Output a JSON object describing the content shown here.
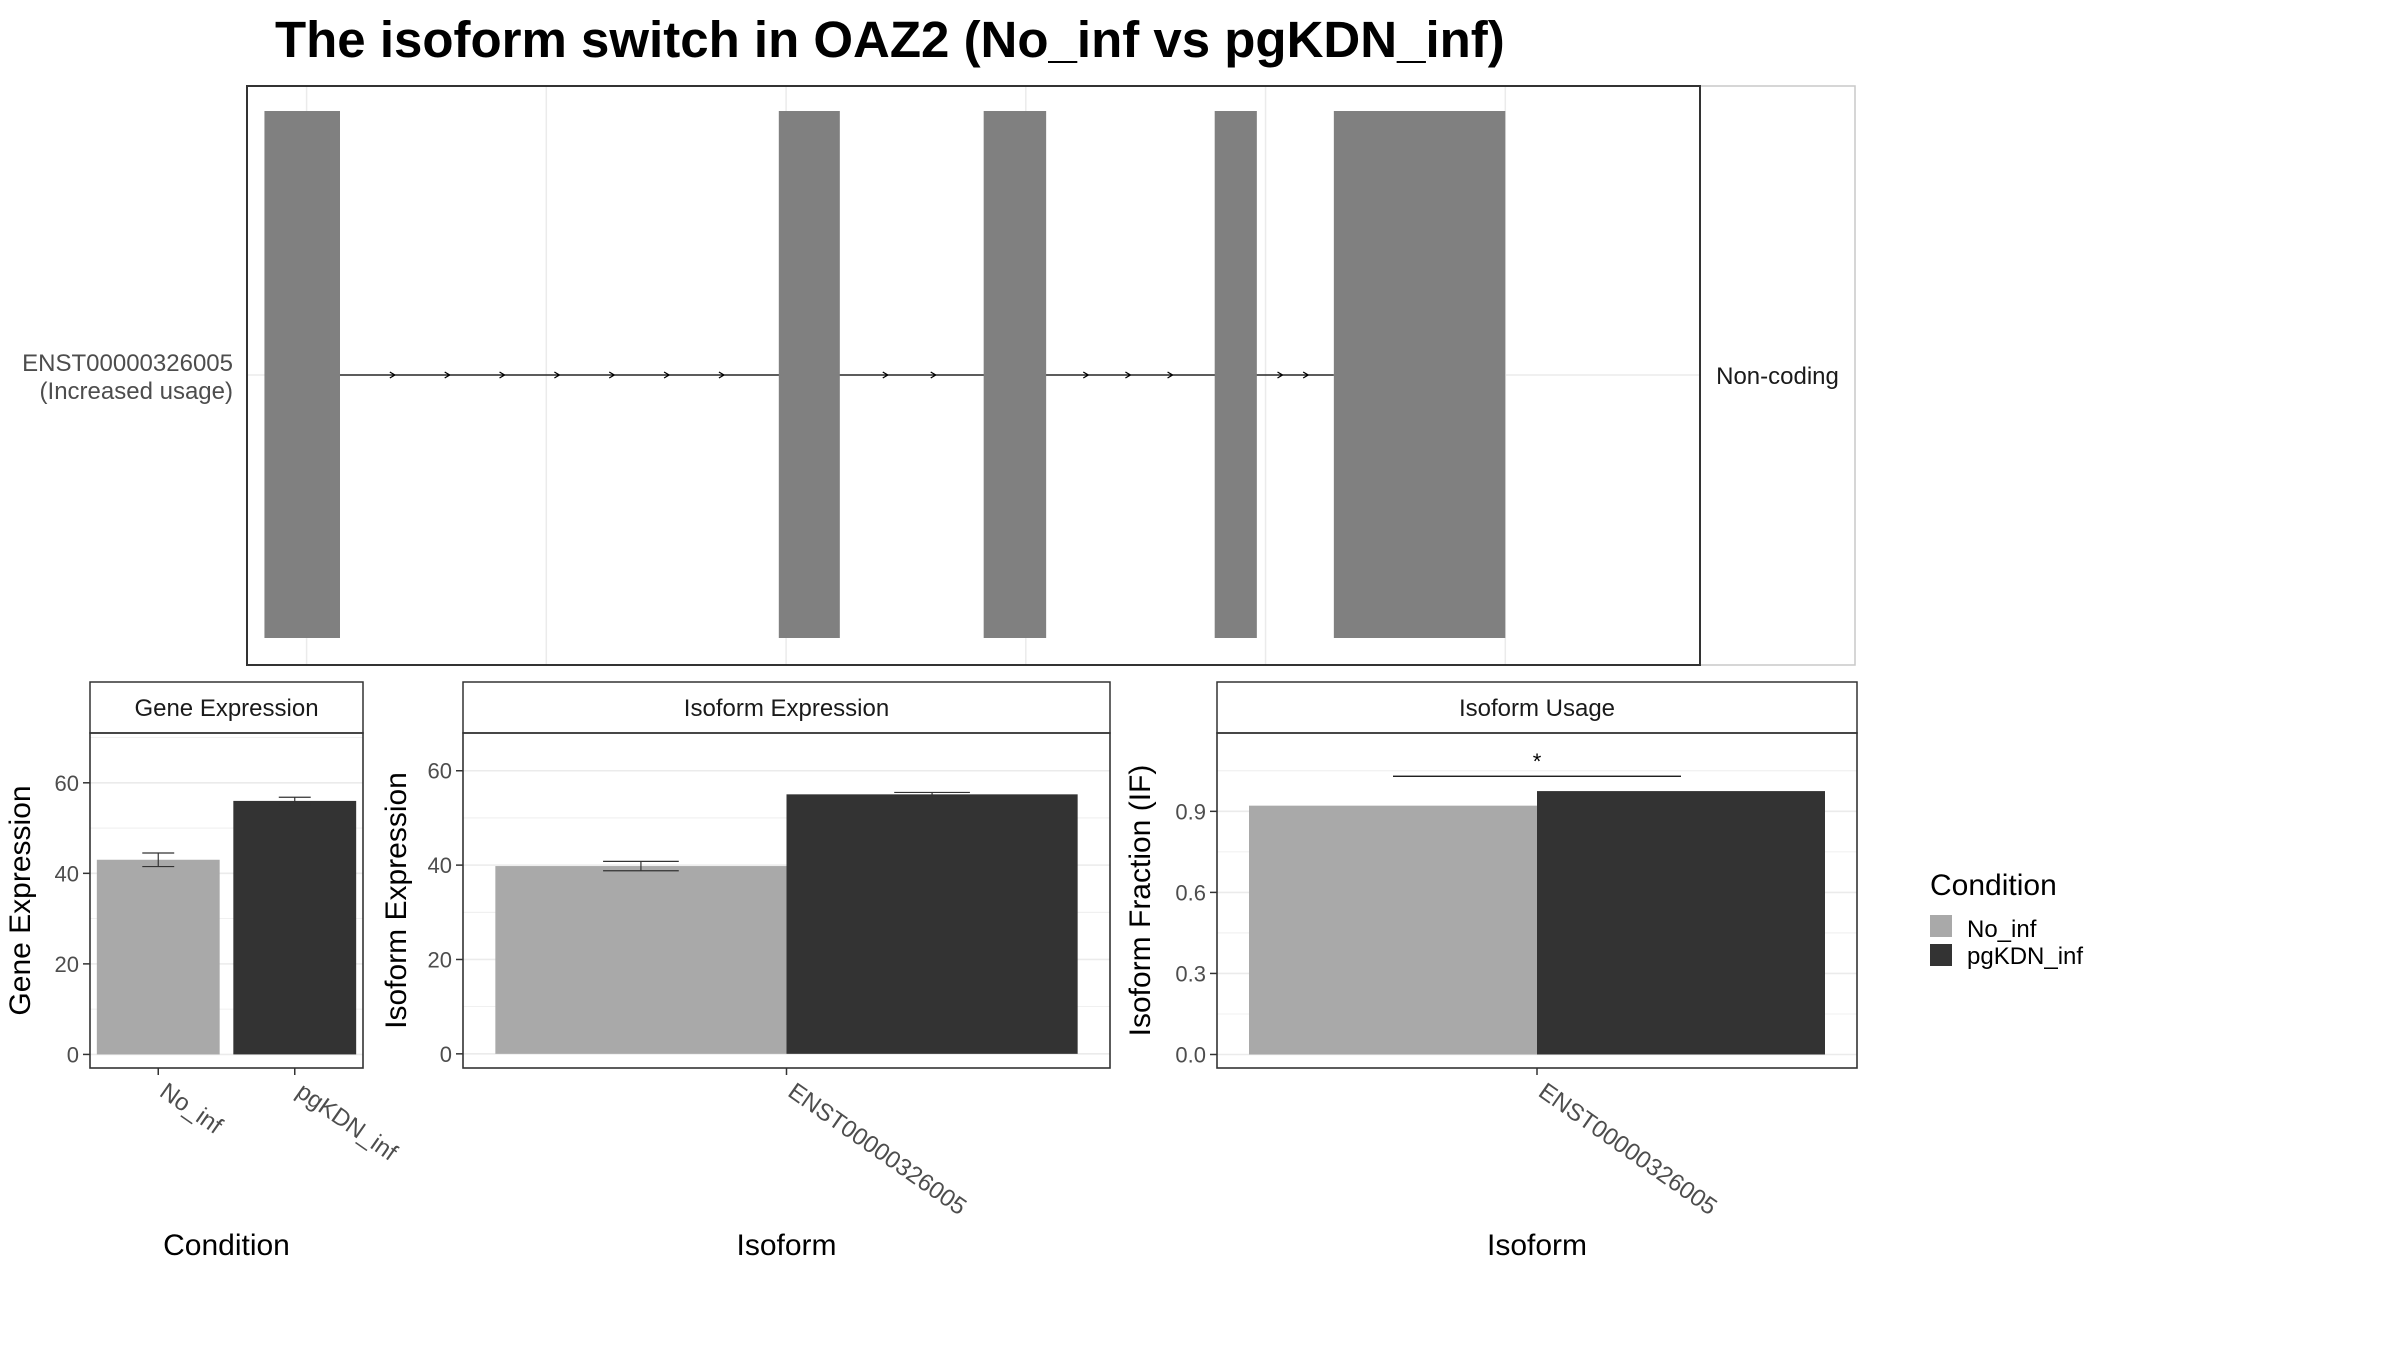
{
  "title": "The isoform switch in OAZ2 (No_inf vs pgKDN_inf)",
  "colors": {
    "No_inf": "#a9a9a9",
    "pgKDN_inf": "#333333",
    "exon": "#808080",
    "grid": "#ebebeb"
  },
  "legend": {
    "title": "Condition",
    "items": [
      {
        "label": "No_inf",
        "color": "#a9a9a9"
      },
      {
        "label": "pgKDN_inf",
        "color": "#333333"
      }
    ]
  },
  "chart_data": [
    {
      "type": "gene-structure",
      "isoform_label": "ENST00000326005",
      "isoform_sublabel": "(Increased usage)",
      "strip_label": "Non-coding",
      "exons": [
        [
          0.012,
          0.064
        ],
        [
          0.366,
          0.408
        ],
        [
          0.507,
          0.55
        ],
        [
          0.666,
          0.695
        ],
        [
          0.748,
          0.866
        ]
      ]
    },
    {
      "type": "bar",
      "strip": "Gene Expression",
      "ylabel": "Gene Expression",
      "xlabel": "Condition",
      "categories": [
        "No_inf",
        "pgKDN_inf"
      ],
      "values": [
        43,
        56
      ],
      "errors": [
        1.5,
        0.8
      ],
      "ylim": [
        -3,
        71
      ],
      "yticks": [
        "0",
        "20",
        "40",
        "60"
      ]
    },
    {
      "type": "bar",
      "strip": "Isoform Expression",
      "ylabel": "Isoform Expression",
      "xlabel": "Isoform",
      "category": "ENST00000326005",
      "series": [
        {
          "name": "No_inf",
          "value": 39.8,
          "error": 1.0
        },
        {
          "name": "pgKDN_inf",
          "value": 55,
          "error": 0.4
        }
      ],
      "ylim": [
        -3,
        68
      ],
      "yticks": [
        "0",
        "20",
        "40",
        "60"
      ]
    },
    {
      "type": "bar",
      "strip": "Isoform Usage",
      "ylabel": "Isoform Fraction (IF)",
      "xlabel": "Isoform",
      "category": "ENST00000326005",
      "series": [
        {
          "name": "No_inf",
          "value": 0.921
        },
        {
          "name": "pgKDN_inf",
          "value": 0.975
        }
      ],
      "significance": "*",
      "significance_y": 1.03,
      "ylim": [
        -0.05,
        1.19
      ],
      "yticks": [
        "0.0",
        "0.3",
        "0.6",
        "0.9"
      ]
    }
  ]
}
